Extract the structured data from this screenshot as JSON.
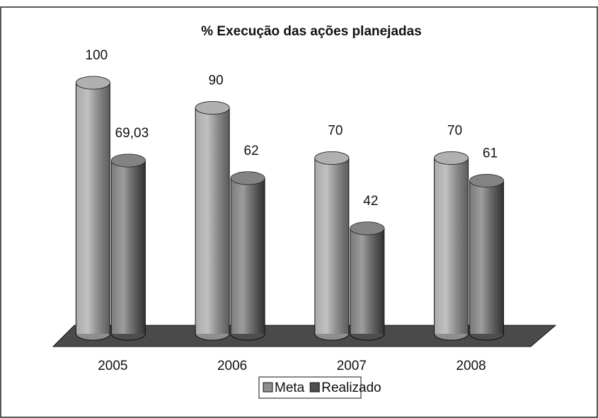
{
  "chart_data": {
    "type": "bar",
    "title": "% Execução das ações planejadas",
    "categories": [
      "2005",
      "2006",
      "2007",
      "2008"
    ],
    "series": [
      {
        "name": "Meta",
        "color": "#8e8e8e",
        "values": [
          100,
          90,
          70,
          70
        ]
      },
      {
        "name": "Realizado",
        "color": "#4e4e4e",
        "values": [
          69.03,
          62,
          42,
          61
        ],
        "value_labels": [
          "69,03",
          "62",
          "42",
          "61"
        ]
      }
    ],
    "ylim": [
      0,
      100
    ],
    "legend": "bottom"
  }
}
